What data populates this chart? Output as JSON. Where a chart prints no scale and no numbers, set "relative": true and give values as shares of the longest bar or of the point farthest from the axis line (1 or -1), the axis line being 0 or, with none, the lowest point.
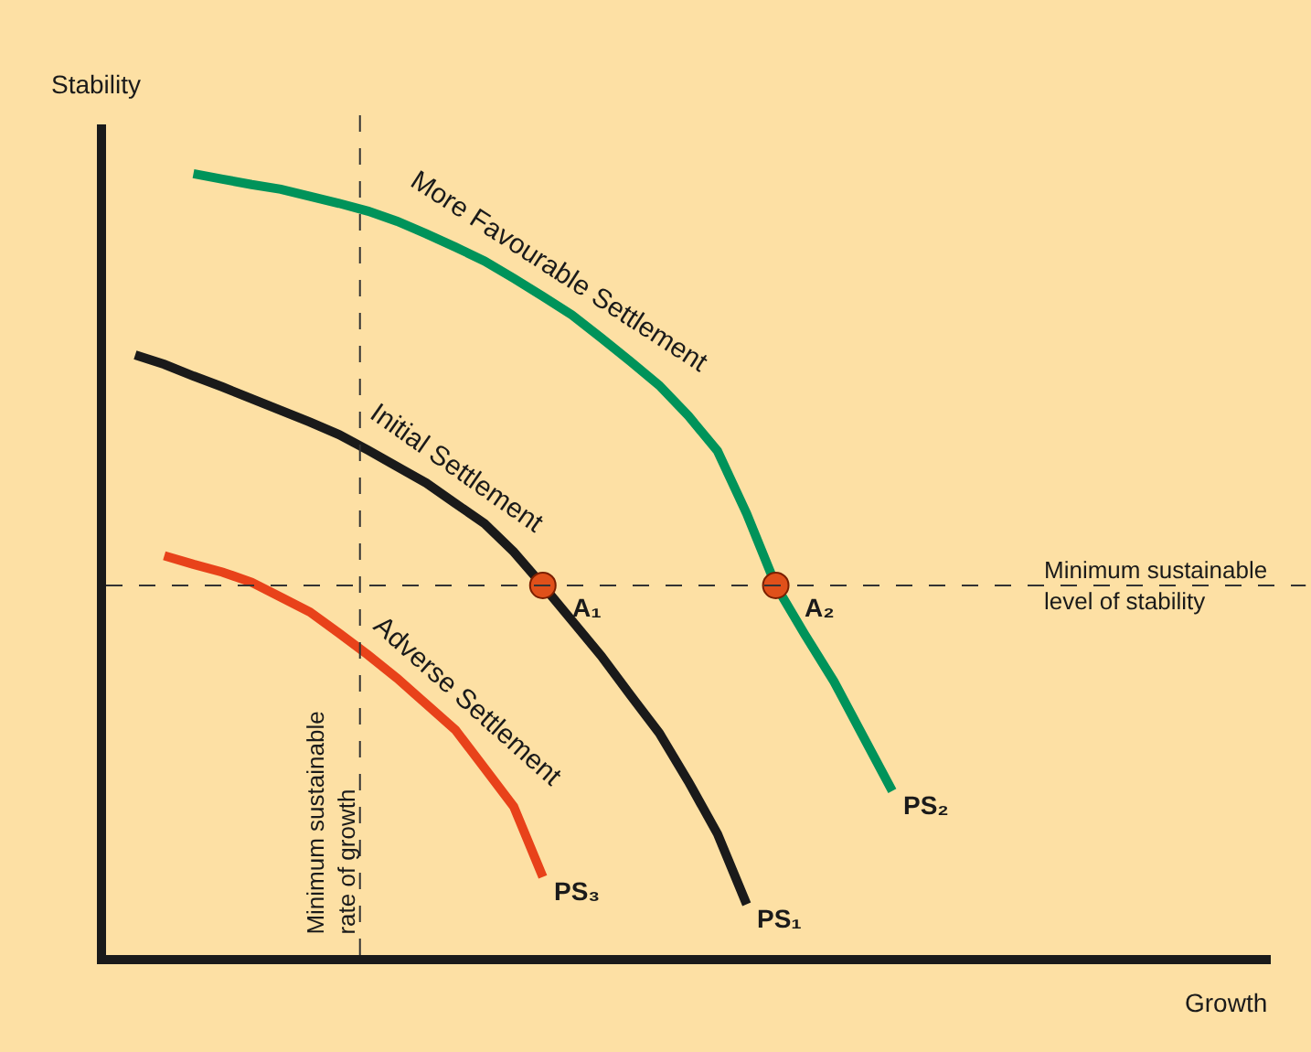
{
  "chart_data": {
    "type": "line",
    "relative": true,
    "xlabel": "Growth",
    "ylabel": "Stability",
    "grid": false,
    "legend": false,
    "marker": "none",
    "line_style": "solid",
    "categories": [
      null,
      null,
      null,
      null,
      null,
      null,
      null,
      null,
      null,
      null,
      null,
      null,
      null,
      null,
      null,
      null,
      null,
      null,
      null,
      null,
      null,
      null,
      null,
      null,
      null,
      null,
      null,
      null,
      null,
      null,
      null,
      null,
      null,
      null,
      null,
      null,
      null,
      null,
      null,
      null,
      null
    ],
    "series": [
      {
        "name": "PS₂",
        "color": "#00935a",
        "values": [
          null,
          null,
          null,
          1.0,
          0.993,
          0.986,
          0.98,
          0.971,
          0.962,
          0.952,
          0.939,
          0.923,
          0.906,
          0.888,
          0.866,
          0.843,
          0.819,
          0.79,
          0.76,
          0.729,
          0.69,
          0.645,
          0.565,
          0.473,
          0.41,
          0.35,
          0.28,
          0.21,
          null,
          null,
          null,
          null,
          null,
          null,
          null,
          null,
          null,
          null,
          null,
          null,
          null
        ]
      },
      {
        "name": "PS₁",
        "color": "#1a1a1a",
        "values": [
          null,
          0.768,
          0.756,
          0.741,
          0.727,
          0.712,
          0.697,
          0.682,
          0.666,
          0.646,
          0.625,
          0.604,
          0.578,
          0.552,
          0.516,
          0.473,
          0.428,
          0.383,
          0.333,
          0.284,
          0.222,
          0.155,
          0.065,
          null,
          null,
          null,
          null,
          null,
          null,
          null,
          null,
          null,
          null,
          null,
          null,
          null,
          null,
          null,
          null,
          null,
          null
        ]
      },
      {
        "name": "PS₃",
        "color": "#e8421a",
        "values": [
          null,
          null,
          0.511,
          0.5,
          0.49,
          0.477,
          0.458,
          0.439,
          0.412,
          0.384,
          0.354,
          0.321,
          0.288,
          0.239,
          0.19,
          0.1,
          null,
          null,
          null,
          null,
          null,
          null,
          null,
          null,
          null,
          null,
          null,
          null,
          null,
          null,
          null,
          null,
          null,
          null,
          null,
          null,
          null,
          null,
          null,
          null,
          null
        ]
      }
    ],
    "ref_lines": [
      {
        "axis": "y",
        "value": 0.473,
        "label": "Minimum sustainable\nlevel of stability",
        "color": "#333333",
        "line_style": "dashed"
      }
    ],
    "annotations": [
      "More Favourable Settlement",
      "Initial Settlement",
      "Adverse Settlement",
      "Minimum sustainable\nrate of growth",
      {
        "text": "A₁",
        "y": 0.473
      },
      {
        "text": "A₂",
        "y": 0.473
      }
    ]
  }
}
